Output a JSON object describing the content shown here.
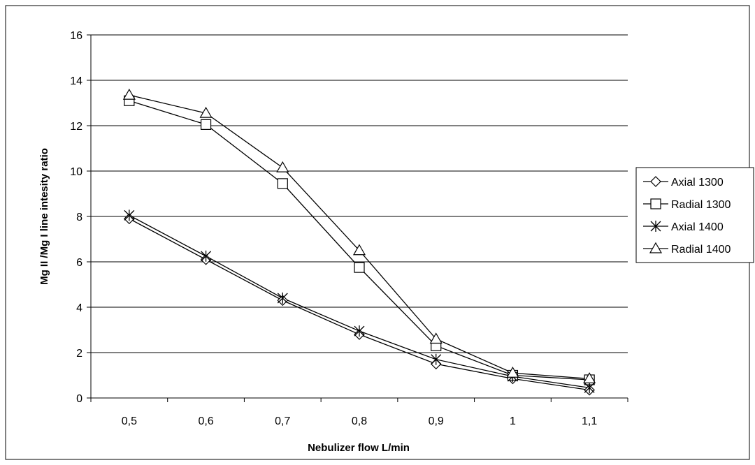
{
  "chart_data": {
    "type": "line",
    "title": "",
    "xlabel": "Nebulizer flow L/min",
    "ylabel": "Mg II /Mg I line intesity ratio",
    "categories": [
      "0,5",
      "0,6",
      "0,7",
      "0,8",
      "0,9",
      "1",
      "1,1"
    ],
    "ylim": [
      0,
      16
    ],
    "yticks": [
      0,
      2,
      4,
      6,
      8,
      10,
      12,
      14,
      16
    ],
    "grid": true,
    "legend_position": "right",
    "series": [
      {
        "name": "Axial 1300",
        "marker": "diamond",
        "values": [
          7.9,
          6.1,
          4.3,
          2.8,
          1.5,
          0.85,
          0.35
        ]
      },
      {
        "name": "Radial 1300",
        "marker": "square",
        "values": [
          13.1,
          12.05,
          9.45,
          5.75,
          2.3,
          1.0,
          0.8
        ]
      },
      {
        "name": "Axial 1400",
        "marker": "star",
        "values": [
          8.05,
          6.25,
          4.4,
          2.95,
          1.7,
          0.95,
          0.45
        ]
      },
      {
        "name": "Radial 1400",
        "marker": "triangle",
        "values": [
          13.35,
          12.55,
          10.15,
          6.5,
          2.6,
          1.1,
          0.85
        ]
      }
    ]
  }
}
